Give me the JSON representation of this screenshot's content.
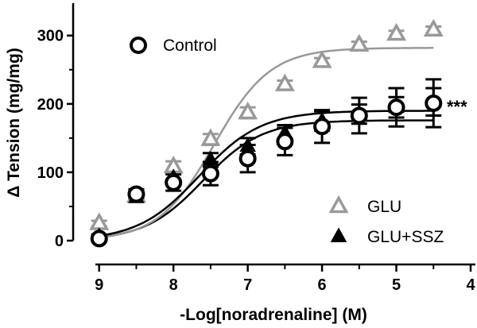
{
  "chart_data": {
    "type": "scatter",
    "title": "",
    "xlabel": "-Log[noradrenaline] (M)",
    "ylabel": "Δ Tension (mg/mg)",
    "x_reversed": true,
    "xlim": [
      9.35,
      4.0
    ],
    "ylim": [
      0,
      345
    ],
    "x_ticks": [
      9,
      8,
      7,
      6,
      5,
      4
    ],
    "y_ticks": [
      0,
      100,
      200,
      300
    ],
    "grid": false,
    "legend_position": "top-left and bottom-right",
    "x": [
      9,
      8.5,
      8,
      7.5,
      7,
      6.5,
      6,
      5.5,
      5,
      4.5
    ],
    "series": [
      {
        "name": "Control",
        "marker": "open-circle",
        "color": "#000000",
        "values": [
          3,
          68,
          85,
          98,
          120,
          145,
          167,
          183,
          195,
          201
        ],
        "errors": [
          4,
          7,
          12,
          17,
          20,
          20,
          24,
          26,
          28,
          35
        ],
        "fit": {
          "bottom": 0,
          "top": 176,
          "logEC50": 7.6,
          "hill": 1.1
        },
        "curve_color": "#000000"
      },
      {
        "name": "GLU",
        "marker": "open-triangle",
        "color": "#999999",
        "values": [
          25,
          65,
          108,
          148,
          187,
          228,
          262,
          286,
          302,
          308
        ],
        "errors": [
          4,
          5,
          8,
          8,
          8,
          6,
          5,
          5,
          5,
          5
        ],
        "fit": {
          "bottom": 0,
          "top": 282,
          "logEC50": 7.45,
          "hill": 1.15
        },
        "curve_color": "#999999"
      },
      {
        "name": "GLU+SSZ",
        "marker": "filled-triangle",
        "color": "#000000",
        "values": [
          6,
          63,
          92,
          118,
          138,
          157,
          175,
          185,
          195,
          203
        ],
        "errors": [
          3,
          6,
          8,
          10,
          12,
          12,
          14,
          14,
          15,
          20
        ],
        "fit": {
          "bottom": 0,
          "top": 190,
          "logEC50": 7.65,
          "hill": 1.05
        },
        "curve_color": "#000000"
      }
    ],
    "annotations": [
      {
        "text": "***",
        "anchor_series": "Control"
      }
    ]
  }
}
